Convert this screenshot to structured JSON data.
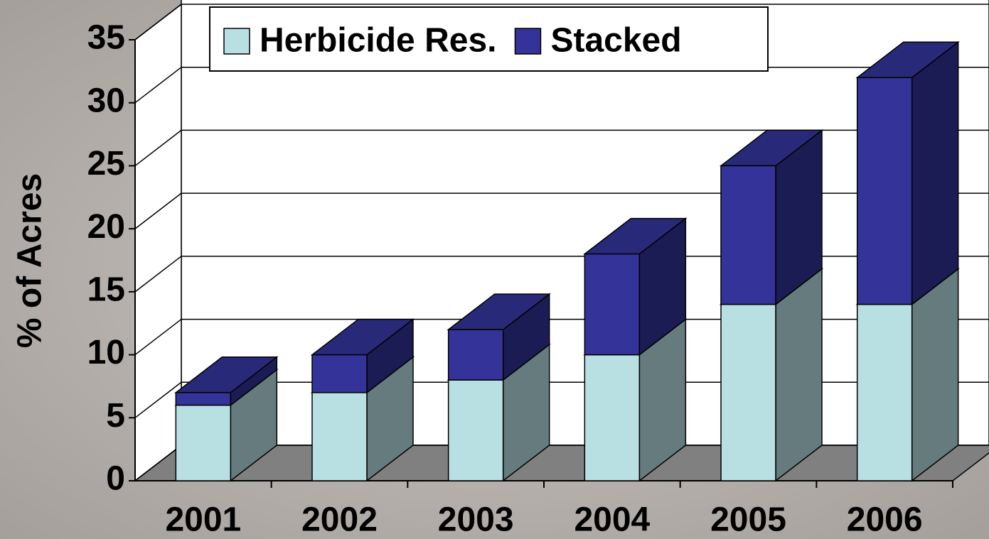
{
  "chart_data": {
    "type": "bar3d-stacked",
    "y_label": "% of Acres",
    "categories": [
      "2001",
      "2002",
      "2003",
      "2004",
      "2005",
      "2006"
    ],
    "series": [
      {
        "name": "Herbicide Res.",
        "color": "#b8e0e3",
        "values": [
          6,
          7,
          8,
          10,
          14,
          14
        ]
      },
      {
        "name": "Stacked",
        "color": "#333399",
        "values": [
          1,
          3,
          4,
          8,
          11,
          18
        ]
      }
    ],
    "ylim": [
      0,
      35
    ],
    "yticks": [
      0,
      5,
      10,
      15,
      20,
      25,
      30,
      35
    ],
    "grid": true,
    "legend": "top"
  }
}
